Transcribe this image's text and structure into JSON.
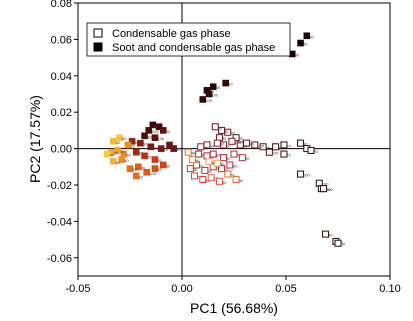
{
  "chart_data": {
    "type": "scatter",
    "title": "",
    "xlabel": "PC1 (56.68%)",
    "ylabel": "PC2 (17.57%)",
    "xlim": [
      -0.05,
      0.1
    ],
    "ylim": [
      -0.07,
      0.08
    ],
    "xticks": [
      -0.05,
      0.0,
      0.05,
      0.1
    ],
    "xtick_labels": [
      "-0.05",
      "0.00",
      "0.05",
      "0.10"
    ],
    "yticks": [
      -0.06,
      -0.04,
      -0.02,
      0.0,
      0.02,
      0.04,
      0.06,
      0.08
    ],
    "ytick_labels": [
      "-0.06",
      "-0.04",
      "-0.02",
      "0.00",
      "0.02",
      "0.04",
      "0.06",
      "0.08"
    ],
    "grid": false,
    "reference_lines": [
      {
        "axis": "x",
        "value": 0
      },
      {
        "axis": "y",
        "value": 0
      }
    ],
    "legend_position": "top",
    "series": [
      {
        "name": "Condensable gas phase",
        "marker": "open-square",
        "points": [
          [
            0.057,
            0.003,
            "#2a0a0a",
            "90"
          ],
          [
            0.06,
            0.0,
            "#2a0a0a",
            "90"
          ],
          [
            0.062,
            -0.001,
            "#2a0a0a",
            "70"
          ],
          [
            0.057,
            -0.014,
            "#2a0a0a",
            "100"
          ],
          [
            0.066,
            -0.019,
            "#2a0a0a",
            "100"
          ],
          [
            0.067,
            -0.022,
            "#2a0a0a",
            "100"
          ],
          [
            0.068,
            -0.022,
            "#2a0a0a",
            "100"
          ],
          [
            0.069,
            -0.047,
            "#2a0a0a",
            "40"
          ],
          [
            0.074,
            -0.051,
            "#2a0a0a",
            "90"
          ],
          [
            0.075,
            -0.052,
            "#2a0a0a",
            "60"
          ],
          [
            0.049,
            0.002,
            "#3a0a10",
            "70"
          ],
          [
            0.045,
            0.001,
            "#3a0a10",
            "100"
          ],
          [
            0.049,
            -0.003,
            "#3a0a10",
            "70"
          ],
          [
            0.042,
            -0.002,
            "#5a0f1a",
            "100"
          ],
          [
            0.039,
            0.001,
            "#5a0f1a",
            "70"
          ],
          [
            0.035,
            0.002,
            "#5a0f1a",
            "100"
          ],
          [
            0.031,
            0.003,
            "#5a0f1a",
            "90"
          ],
          [
            0.028,
            0.002,
            "#5a0f1a",
            "50"
          ],
          [
            0.026,
            0.006,
            "#5a0f1a",
            "90"
          ],
          [
            0.022,
            0.009,
            "#6b1422",
            "90"
          ],
          [
            0.019,
            0.01,
            "#6b1422",
            "60"
          ],
          [
            0.016,
            0.012,
            "#6b1422",
            "40"
          ],
          [
            0.018,
            0.006,
            "#6b1422",
            "90"
          ],
          [
            0.024,
            0.004,
            "#8a1a2a",
            "100"
          ],
          [
            0.02,
            0.002,
            "#8a1a2a",
            "60"
          ],
          [
            0.017,
            0.003,
            "#8a1a2a",
            "90"
          ],
          [
            0.012,
            0.002,
            "#8a1a2a",
            "60"
          ],
          [
            0.009,
            0.001,
            "#a02030",
            "70"
          ],
          [
            0.008,
            -0.003,
            "#a02030",
            "90"
          ],
          [
            0.012,
            -0.004,
            "#a02030",
            "90"
          ],
          [
            0.015,
            -0.003,
            "#a02030",
            "80"
          ],
          [
            0.02,
            -0.005,
            "#a02030",
            "90"
          ],
          [
            0.025,
            -0.003,
            "#b82a36",
            "40"
          ],
          [
            0.029,
            -0.005,
            "#b82a36",
            "90"
          ],
          [
            0.023,
            -0.009,
            "#b82a36",
            "60"
          ],
          [
            0.019,
            -0.011,
            "#c0303a",
            "90"
          ],
          [
            0.015,
            -0.01,
            "#c0303a",
            "10"
          ],
          [
            0.011,
            -0.012,
            "#c0303a",
            "80"
          ],
          [
            0.007,
            -0.009,
            "#c83a3a",
            "60"
          ],
          [
            0.004,
            -0.011,
            "#c83a3a",
            "50"
          ],
          [
            0.006,
            -0.015,
            "#d04a3a",
            "20"
          ],
          [
            0.01,
            -0.017,
            "#d04a3a",
            "40"
          ],
          [
            0.014,
            -0.016,
            "#d85a3a",
            "70"
          ],
          [
            0.018,
            -0.018,
            "#d85a3a",
            "90"
          ],
          [
            0.022,
            -0.014,
            "#e06a3a",
            "60"
          ],
          [
            0.026,
            -0.017,
            "#e06a3a",
            "40"
          ],
          [
            0.003,
            -0.002,
            "#e07a40",
            "40"
          ],
          [
            0.005,
            -0.006,
            "#e88a40",
            "60"
          ],
          [
            0.013,
            -0.007,
            "#f09a48",
            "90"
          ],
          [
            0.017,
            -0.008,
            "#f0a050",
            "50"
          ]
        ]
      },
      {
        "name": "Soot and condensable gas phase",
        "marker": "filled-square",
        "points": [
          [
            0.06,
            0.062,
            "#1a0505",
            "90"
          ],
          [
            0.057,
            0.058,
            "#1a0505",
            "90"
          ],
          [
            0.053,
            0.052,
            "#1a0505",
            "90"
          ],
          [
            0.021,
            0.036,
            "#2a0808",
            "90"
          ],
          [
            0.015,
            0.034,
            "#2a0808",
            "90"
          ],
          [
            0.012,
            0.032,
            "#2a0808",
            "70"
          ],
          [
            0.01,
            0.027,
            "#2a0808",
            "100"
          ],
          [
            0.013,
            0.03,
            "#2a0808",
            "100"
          ],
          [
            -0.011,
            0.012,
            "#3a0a0a",
            "90"
          ],
          [
            -0.014,
            0.013,
            "#3a0a0a",
            "90"
          ],
          [
            -0.016,
            0.01,
            "#4a0e0e",
            "100"
          ],
          [
            -0.018,
            0.007,
            "#4a0e0e",
            "100"
          ],
          [
            -0.013,
            0.006,
            "#5a1010",
            "100"
          ],
          [
            -0.009,
            0.01,
            "#5a1010",
            "90"
          ],
          [
            -0.006,
            0.002,
            "#6a1414",
            "90"
          ],
          [
            -0.004,
            0.0,
            "#6a1414",
            "30"
          ],
          [
            -0.01,
            0.0,
            "#7a1a10",
            "70"
          ],
          [
            -0.015,
            0.001,
            "#7a1a10",
            "10"
          ],
          [
            -0.02,
            0.003,
            "#8a1e10",
            "50"
          ],
          [
            -0.024,
            0.004,
            "#9a2210",
            "90"
          ],
          [
            -0.022,
            -0.002,
            "#a82a10",
            "60"
          ],
          [
            -0.018,
            -0.004,
            "#b83010",
            "30"
          ],
          [
            -0.013,
            -0.006,
            "#c83a14",
            "50"
          ],
          [
            -0.009,
            -0.009,
            "#d04414",
            "30"
          ],
          [
            -0.013,
            -0.011,
            "#d84e18",
            "20"
          ],
          [
            -0.017,
            -0.013,
            "#e0581c",
            "100"
          ],
          [
            -0.021,
            -0.01,
            "#e0581c",
            "30"
          ],
          [
            -0.025,
            -0.011,
            "#e86a20",
            "10"
          ],
          [
            -0.022,
            -0.015,
            "#e86a20",
            "10"
          ],
          [
            -0.028,
            -0.003,
            "#f08a28",
            "50"
          ],
          [
            -0.031,
            -0.001,
            "#f4a030",
            "70"
          ],
          [
            -0.034,
            -0.002,
            "#f4a830",
            "40"
          ],
          [
            -0.033,
            0.004,
            "#f8b838",
            "60"
          ],
          [
            -0.03,
            0.006,
            "#f8c040",
            "40"
          ],
          [
            -0.026,
            0.002,
            "#f0901c",
            "30"
          ],
          [
            -0.029,
            -0.006,
            "#f09020",
            "40"
          ],
          [
            -0.036,
            -0.003,
            "#fac848",
            "40"
          ],
          [
            -0.033,
            -0.007,
            "#f8b038",
            "60"
          ]
        ]
      }
    ]
  }
}
